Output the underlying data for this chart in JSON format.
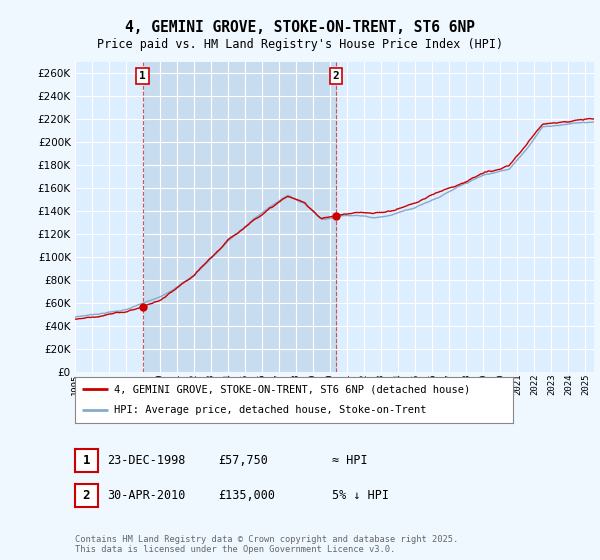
{
  "title": "4, GEMINI GROVE, STOKE-ON-TRENT, ST6 6NP",
  "subtitle": "Price paid vs. HM Land Registry's House Price Index (HPI)",
  "ylim": [
    0,
    270000
  ],
  "yticks": [
    0,
    20000,
    40000,
    60000,
    80000,
    100000,
    120000,
    140000,
    160000,
    180000,
    200000,
    220000,
    240000,
    260000
  ],
  "ytick_labels": [
    "£0",
    "£20K",
    "£40K",
    "£60K",
    "£80K",
    "£100K",
    "£120K",
    "£140K",
    "£160K",
    "£180K",
    "£200K",
    "£220K",
    "£240K",
    "£260K"
  ],
  "background_color": "#f0f8ff",
  "plot_bg_color": "#ddeeff",
  "highlight_color": "#c8dcf0",
  "grid_color": "#ffffff",
  "sale1_date_num": 1998.97,
  "sale1_price": 57750,
  "sale2_date_num": 2010.33,
  "sale2_price": 135000,
  "legend_line1": "4, GEMINI GROVE, STOKE-ON-TRENT, ST6 6NP (detached house)",
  "legend_line2": "HPI: Average price, detached house, Stoke-on-Trent",
  "red_color": "#cc0000",
  "blue_color": "#88aacc",
  "annotation1_date": "23-DEC-1998",
  "annotation1_price": "£57,750",
  "annotation1_hpi": "≈ HPI",
  "annotation2_date": "30-APR-2010",
  "annotation2_price": "£135,000",
  "annotation2_hpi": "5% ↓ HPI",
  "footer": "Contains HM Land Registry data © Crown copyright and database right 2025.\nThis data is licensed under the Open Government Licence v3.0.",
  "xmin": 1995.0,
  "xmax": 2025.5
}
